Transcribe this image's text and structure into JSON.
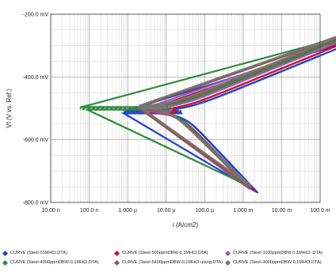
{
  "chart_data": {
    "type": "scatter",
    "xscale": "log",
    "xlim": [
      "10.00 n",
      "100.0 m"
    ],
    "ylim": [
      -800,
      -200
    ],
    "xlabel": "i (A/cm2)",
    "ylabel": "Vf (V vs. Ref.)",
    "grid": true,
    "x_ticks": [
      "10.00 n",
      "100.0 n",
      "1.000 µ",
      "10.00 µ",
      "100.0 µ",
      "1.000 m",
      "10.00 m",
      "100.0 m"
    ],
    "x_tick_values": [
      1e-08,
      1e-07,
      1e-06,
      1e-05,
      0.0001,
      0.001,
      0.01,
      0.1
    ],
    "y_ticks": [
      "-200.0 mV",
      "-400.0 mV",
      "-600.0 mV",
      "-800.0 mV"
    ],
    "y_tick_values": [
      -200,
      -400,
      -600,
      -800
    ],
    "legend_position": "bottom",
    "series": [
      {
        "name": "CURVE (Steel-01MHCl.DTA)",
        "color": "#1f3fd6",
        "ecorr": -512,
        "icorr": 2.5e-05,
        "ba": 50,
        "bc": 130,
        "xmin": 8e-07,
        "ymin": -770,
        "ymax": -262
      },
      {
        "name": "CURVE (Steel-500ppmDBW-0,1MHCl.DTA)",
        "color": "#c8102e",
        "ecorr": -510,
        "icorr": 1.8e-05,
        "ba": 50,
        "bc": 125,
        "xmin": 3e-06,
        "ymin": -762,
        "ymax": -260
      },
      {
        "name": "CURVE (Steel-1100ppmDBW-0,1MHCl-.DTA)",
        "color": "#9b59b6",
        "ecorr": -505,
        "icorr": 1.4e-05,
        "ba": 50,
        "bc": 125,
        "xmin": 2.5e-06,
        "ymin": -757,
        "ymax": -258
      },
      {
        "name": "CURVE (Steel-4000ppmDBW-0,1MHCl.DTA)",
        "color": "#2e8b3a",
        "ecorr": -500,
        "icorr": 1.3e-05,
        "ba": 50,
        "bc": 120,
        "xmin": 6e-08,
        "ymin": -752,
        "ymax": -262
      },
      {
        "name": "CURVE (Steel-5600ppmDBW-0,1MHCl-ulang.DTA)",
        "color": "#8b5a4a",
        "ecorr": -498,
        "icorr": 1.1e-05,
        "ba": 50,
        "bc": 120,
        "xmin": 2e-06,
        "ymin": -752,
        "ymax": -258
      },
      {
        "name": "CURVE (Steel-3000ppmDBW-0,1MHCl.DTA)",
        "color": "#777777",
        "ecorr": -495,
        "icorr": 1e-05,
        "ba": 50,
        "bc": 115,
        "xmin": 2e-06,
        "ymin": -748,
        "ymax": -256
      }
    ]
  }
}
